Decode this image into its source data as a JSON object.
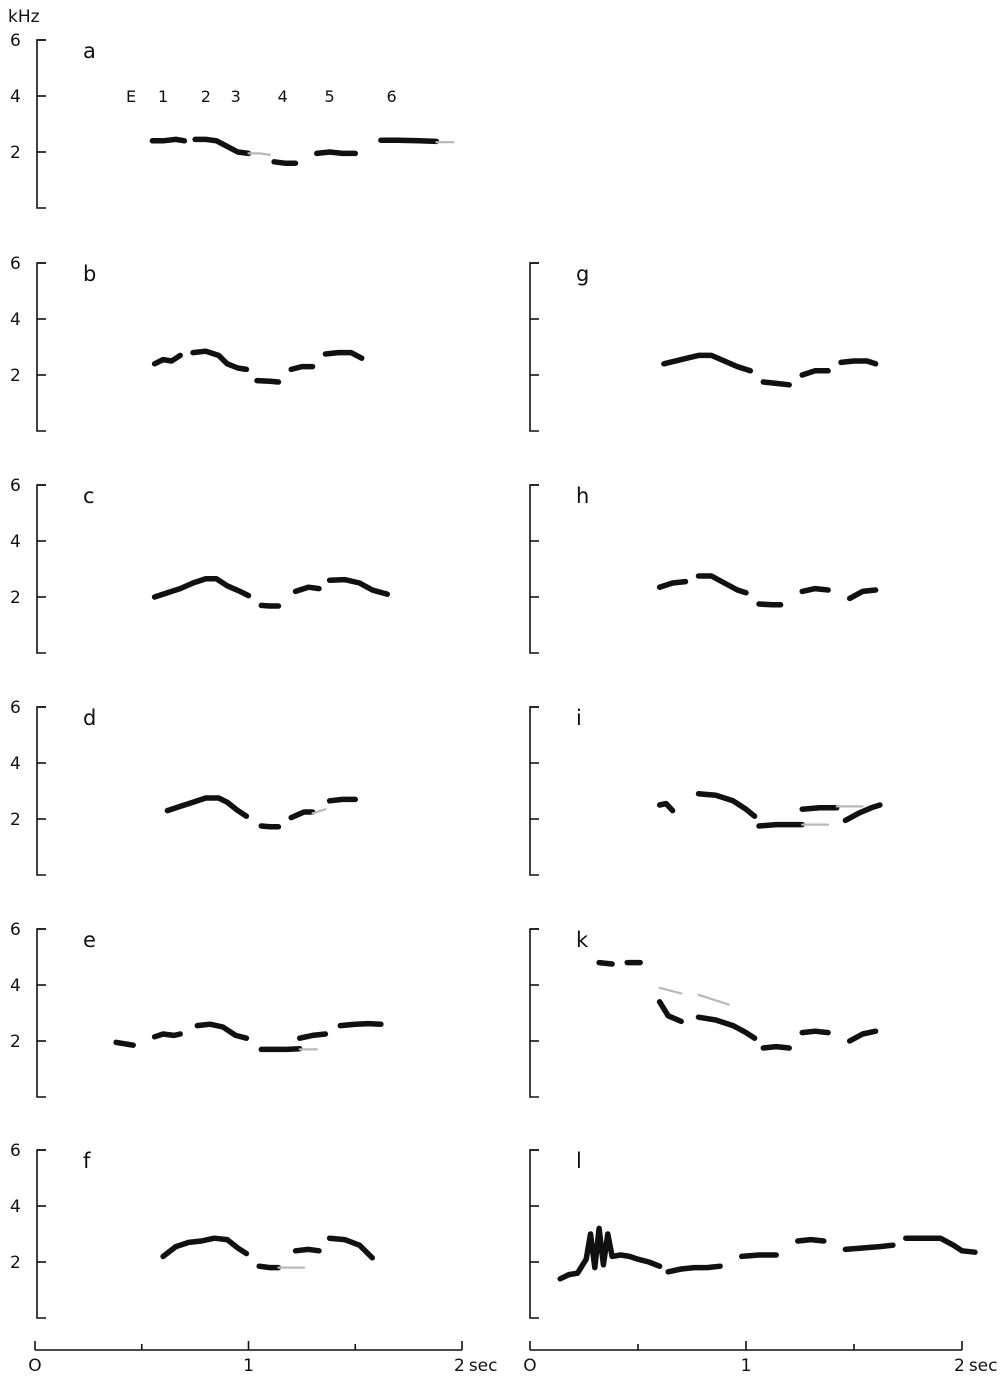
{
  "figure": {
    "unit_label": "kHz",
    "time_unit": "sec"
  },
  "chart_data": [
    {
      "panel": "a",
      "type": "line",
      "ylim": [
        0,
        7
      ],
      "xlim": [
        0,
        2
      ],
      "y_ticks": [
        "2",
        "4",
        "6"
      ],
      "annotations": [
        "E",
        "1",
        "2",
        "3",
        "4",
        "5",
        "6"
      ],
      "annotation_x": [
        0.45,
        0.6,
        0.8,
        0.94,
        1.16,
        1.38,
        1.67
      ],
      "series": [
        {
          "x": [
            0.55,
            0.6,
            0.66,
            0.7
          ],
          "y": [
            2.4,
            2.4,
            2.45,
            2.4
          ]
        },
        {
          "x": [
            0.75,
            0.8,
            0.85,
            0.9,
            0.95,
            1.0
          ],
          "y": [
            2.45,
            2.45,
            2.4,
            2.2,
            2.0,
            1.95
          ]
        },
        {
          "x": [
            1.0,
            1.05,
            1.1
          ],
          "y": [
            1.95,
            1.95,
            1.9
          ],
          "faint": true
        },
        {
          "x": [
            1.12,
            1.17,
            1.22
          ],
          "y": [
            1.65,
            1.6,
            1.6
          ]
        },
        {
          "x": [
            1.32,
            1.38,
            1.44,
            1.5
          ],
          "y": [
            1.95,
            2.0,
            1.95,
            1.95
          ]
        },
        {
          "x": [
            1.62,
            1.7,
            1.8,
            1.88
          ],
          "y": [
            2.42,
            2.42,
            2.4,
            2.38
          ]
        },
        {
          "x": [
            1.88,
            1.96
          ],
          "y": [
            2.35,
            2.35
          ],
          "faint": true
        }
      ]
    },
    {
      "panel": "b",
      "type": "line",
      "ylim": [
        0,
        7
      ],
      "xlim": [
        0,
        2
      ],
      "y_ticks": [
        "2",
        "4",
        "6"
      ],
      "series": [
        {
          "x": [
            0.56,
            0.6,
            0.64,
            0.68
          ],
          "y": [
            2.4,
            2.55,
            2.5,
            2.7
          ]
        },
        {
          "x": [
            0.74,
            0.8,
            0.86,
            0.9,
            0.95,
            0.99
          ],
          "y": [
            2.8,
            2.85,
            2.7,
            2.4,
            2.25,
            2.2
          ]
        },
        {
          "x": [
            1.04,
            1.1,
            1.14
          ],
          "y": [
            1.8,
            1.78,
            1.75
          ]
        },
        {
          "x": [
            1.2,
            1.25,
            1.3
          ],
          "y": [
            2.2,
            2.3,
            2.3
          ]
        },
        {
          "x": [
            1.36,
            1.42,
            1.48,
            1.53
          ],
          "y": [
            2.75,
            2.8,
            2.8,
            2.6
          ]
        }
      ]
    },
    {
      "panel": "c",
      "type": "line",
      "ylim": [
        0,
        7
      ],
      "xlim": [
        0,
        2
      ],
      "y_ticks": [
        "2",
        "4",
        "6"
      ],
      "series": [
        {
          "x": [
            0.56,
            0.62,
            0.68,
            0.74,
            0.8,
            0.85,
            0.9,
            0.96,
            1.0
          ],
          "y": [
            2.0,
            2.15,
            2.3,
            2.5,
            2.65,
            2.65,
            2.4,
            2.2,
            2.05
          ]
        },
        {
          "x": [
            1.06,
            1.1,
            1.14
          ],
          "y": [
            1.7,
            1.68,
            1.68
          ]
        },
        {
          "x": [
            1.22,
            1.28,
            1.33
          ],
          "y": [
            2.2,
            2.35,
            2.3
          ]
        },
        {
          "x": [
            1.38,
            1.45,
            1.52,
            1.58,
            1.65
          ],
          "y": [
            2.6,
            2.62,
            2.5,
            2.25,
            2.1
          ]
        }
      ]
    },
    {
      "panel": "d",
      "type": "line",
      "ylim": [
        0,
        7
      ],
      "xlim": [
        0,
        2
      ],
      "y_ticks": [
        "2",
        "4",
        "6"
      ],
      "series": [
        {
          "x": [
            0.62,
            0.68,
            0.74,
            0.8,
            0.86,
            0.9,
            0.95,
            0.99
          ],
          "y": [
            2.3,
            2.45,
            2.6,
            2.75,
            2.75,
            2.6,
            2.3,
            2.1
          ]
        },
        {
          "x": [
            1.06,
            1.1,
            1.14
          ],
          "y": [
            1.75,
            1.72,
            1.72
          ]
        },
        {
          "x": [
            1.2,
            1.26,
            1.3
          ],
          "y": [
            2.05,
            2.25,
            2.25
          ]
        },
        {
          "x": [
            1.3,
            1.36
          ],
          "y": [
            2.2,
            2.35
          ],
          "faint": true
        },
        {
          "x": [
            1.38,
            1.44,
            1.5
          ],
          "y": [
            2.65,
            2.7,
            2.7
          ]
        }
      ]
    },
    {
      "panel": "e",
      "type": "line",
      "ylim": [
        0,
        7
      ],
      "xlim": [
        0,
        2
      ],
      "y_ticks": [
        "2",
        "4",
        "6"
      ],
      "series": [
        {
          "x": [
            0.38,
            0.42,
            0.46
          ],
          "y": [
            1.95,
            1.9,
            1.85
          ]
        },
        {
          "x": [
            0.56,
            0.6,
            0.65,
            0.68
          ],
          "y": [
            2.15,
            2.25,
            2.2,
            2.25
          ]
        },
        {
          "x": [
            0.76,
            0.82,
            0.88,
            0.94,
            0.99
          ],
          "y": [
            2.55,
            2.6,
            2.5,
            2.2,
            2.1
          ]
        },
        {
          "x": [
            1.06,
            1.12,
            1.18,
            1.24
          ],
          "y": [
            1.7,
            1.7,
            1.7,
            1.72
          ]
        },
        {
          "x": [
            1.24,
            1.32
          ],
          "y": [
            1.7,
            1.7
          ],
          "faint": true
        },
        {
          "x": [
            1.24,
            1.3,
            1.36
          ],
          "y": [
            2.1,
            2.2,
            2.25
          ]
        },
        {
          "x": [
            1.43,
            1.5,
            1.56,
            1.62
          ],
          "y": [
            2.55,
            2.6,
            2.62,
            2.6
          ]
        }
      ]
    },
    {
      "panel": "f",
      "type": "line",
      "ylim": [
        0,
        7
      ],
      "xlim": [
        0,
        2
      ],
      "y_ticks": [
        "2",
        "4",
        "6"
      ],
      "series": [
        {
          "x": [
            0.6,
            0.66,
            0.72,
            0.78,
            0.84,
            0.9,
            0.95,
            0.99
          ],
          "y": [
            2.2,
            2.55,
            2.7,
            2.75,
            2.85,
            2.8,
            2.5,
            2.3
          ]
        },
        {
          "x": [
            1.05,
            1.1,
            1.14
          ],
          "y": [
            1.85,
            1.8,
            1.8
          ]
        },
        {
          "x": [
            1.14,
            1.26
          ],
          "y": [
            1.8,
            1.8
          ],
          "faint": true
        },
        {
          "x": [
            1.22,
            1.28,
            1.33
          ],
          "y": [
            2.4,
            2.45,
            2.4
          ]
        },
        {
          "x": [
            1.38,
            1.45,
            1.52,
            1.58
          ],
          "y": [
            2.85,
            2.8,
            2.6,
            2.15
          ]
        }
      ]
    },
    {
      "panel": "g",
      "type": "line",
      "ylim": [
        0,
        7
      ],
      "xlim": [
        0,
        2
      ],
      "y_ticks": [
        "2",
        "4",
        "6"
      ],
      "series": [
        {
          "x": [
            0.62,
            0.7,
            0.78,
            0.84,
            0.9,
            0.96,
            1.02
          ],
          "y": [
            2.4,
            2.55,
            2.7,
            2.7,
            2.5,
            2.3,
            2.15
          ]
        },
        {
          "x": [
            1.08,
            1.14,
            1.2
          ],
          "y": [
            1.75,
            1.7,
            1.65
          ]
        },
        {
          "x": [
            1.26,
            1.32,
            1.38
          ],
          "y": [
            2.0,
            2.15,
            2.15
          ]
        },
        {
          "x": [
            1.44,
            1.5,
            1.56,
            1.6
          ],
          "y": [
            2.45,
            2.5,
            2.5,
            2.4
          ]
        }
      ]
    },
    {
      "panel": "h",
      "type": "line",
      "ylim": [
        0,
        7
      ],
      "xlim": [
        0,
        2
      ],
      "y_ticks": [
        "2",
        "4",
        "6"
      ],
      "series": [
        {
          "x": [
            0.6,
            0.66,
            0.72
          ],
          "y": [
            2.35,
            2.5,
            2.55
          ]
        },
        {
          "x": [
            0.78,
            0.84,
            0.9,
            0.96,
            1.0
          ],
          "y": [
            2.75,
            2.75,
            2.5,
            2.25,
            2.15
          ]
        },
        {
          "x": [
            1.06,
            1.12,
            1.16
          ],
          "y": [
            1.75,
            1.72,
            1.72
          ]
        },
        {
          "x": [
            1.26,
            1.32,
            1.38
          ],
          "y": [
            2.2,
            2.3,
            2.25
          ]
        },
        {
          "x": [
            1.48,
            1.54,
            1.6
          ],
          "y": [
            1.95,
            2.2,
            2.25
          ]
        }
      ]
    },
    {
      "panel": "i",
      "type": "line",
      "ylim": [
        0,
        7
      ],
      "xlim": [
        0,
        2
      ],
      "y_ticks": [
        "2",
        "4",
        "6"
      ],
      "series": [
        {
          "x": [
            0.6,
            0.63,
            0.66
          ],
          "y": [
            2.5,
            2.55,
            2.3
          ]
        },
        {
          "x": [
            0.78,
            0.86,
            0.94,
            1.0,
            1.04
          ],
          "y": [
            2.9,
            2.85,
            2.65,
            2.35,
            2.1
          ]
        },
        {
          "x": [
            1.06,
            1.14,
            1.2,
            1.26
          ],
          "y": [
            1.75,
            1.8,
            1.8,
            1.8
          ]
        },
        {
          "x": [
            1.26,
            1.38
          ],
          "y": [
            1.8,
            1.8
          ],
          "faint": true
        },
        {
          "x": [
            1.26,
            1.34,
            1.42
          ],
          "y": [
            2.35,
            2.4,
            2.4
          ]
        },
        {
          "x": [
            1.42,
            1.54
          ],
          "y": [
            2.45,
            2.45
          ],
          "faint": true
        },
        {
          "x": [
            1.46,
            1.52,
            1.58,
            1.62
          ],
          "y": [
            1.95,
            2.2,
            2.4,
            2.5
          ]
        }
      ]
    },
    {
      "panel": "k",
      "type": "line",
      "ylim": [
        0,
        7
      ],
      "xlim": [
        0,
        2
      ],
      "y_ticks": [
        "2",
        "4",
        "6"
      ],
      "series": [
        {
          "x": [
            0.32,
            0.38
          ],
          "y": [
            4.8,
            4.75
          ]
        },
        {
          "x": [
            0.45,
            0.51
          ],
          "y": [
            4.8,
            4.8
          ]
        },
        {
          "x": [
            0.6,
            0.7
          ],
          "y": [
            3.9,
            3.7
          ],
          "faint": true
        },
        {
          "x": [
            0.78,
            0.92
          ],
          "y": [
            3.65,
            3.3
          ],
          "faint": true
        },
        {
          "x": [
            0.6,
            0.64,
            0.7
          ],
          "y": [
            3.4,
            2.9,
            2.7
          ]
        },
        {
          "x": [
            0.78,
            0.86,
            0.94,
            1.0,
            1.04
          ],
          "y": [
            2.85,
            2.75,
            2.55,
            2.3,
            2.1
          ]
        },
        {
          "x": [
            1.08,
            1.14,
            1.2
          ],
          "y": [
            1.75,
            1.8,
            1.75
          ]
        },
        {
          "x": [
            1.26,
            1.32,
            1.38
          ],
          "y": [
            2.3,
            2.35,
            2.3
          ]
        },
        {
          "x": [
            1.48,
            1.54,
            1.6
          ],
          "y": [
            2.0,
            2.25,
            2.35
          ]
        }
      ]
    },
    {
      "panel": "l",
      "type": "line",
      "ylim": [
        0,
        7
      ],
      "xlim": [
        0,
        2
      ],
      "y_ticks": [
        "2",
        "4",
        "6"
      ],
      "series": [
        {
          "x": [
            0.14,
            0.18,
            0.22,
            0.26,
            0.28,
            0.3,
            0.32,
            0.34,
            0.36,
            0.38,
            0.42,
            0.46,
            0.5,
            0.55,
            0.6
          ],
          "y": [
            1.4,
            1.55,
            1.6,
            2.1,
            3.0,
            1.8,
            3.2,
            1.9,
            3.0,
            2.2,
            2.25,
            2.2,
            2.1,
            2.0,
            1.85
          ]
        },
        {
          "x": [
            0.64,
            0.7,
            0.76,
            0.82,
            0.88
          ],
          "y": [
            1.65,
            1.75,
            1.8,
            1.8,
            1.85
          ]
        },
        {
          "x": [
            0.98,
            1.06,
            1.14
          ],
          "y": [
            2.2,
            2.25,
            2.25
          ]
        },
        {
          "x": [
            1.24,
            1.3,
            1.36
          ],
          "y": [
            2.75,
            2.8,
            2.75
          ]
        },
        {
          "x": [
            1.46,
            1.54,
            1.62,
            1.68
          ],
          "y": [
            2.45,
            2.5,
            2.55,
            2.6
          ]
        },
        {
          "x": [
            1.74,
            1.82,
            1.9,
            1.96,
            2.0,
            2.06
          ],
          "y": [
            2.85,
            2.85,
            2.85,
            2.6,
            2.4,
            2.35
          ]
        }
      ]
    }
  ],
  "x_axes": [
    {
      "tick_labels": [
        "O",
        "1",
        "2"
      ],
      "unit": "sec"
    },
    {
      "tick_labels": [
        "O",
        "1",
        "2"
      ],
      "unit": "sec"
    }
  ]
}
